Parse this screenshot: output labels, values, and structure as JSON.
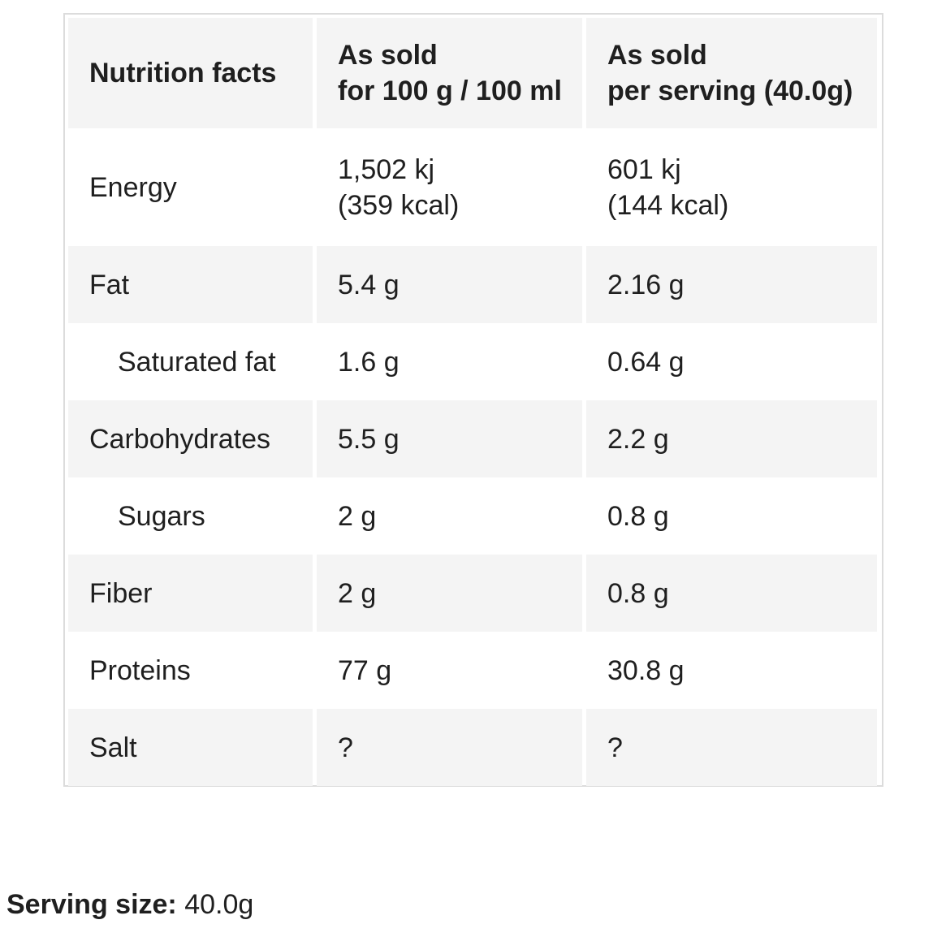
{
  "table": {
    "header": {
      "col1": "Nutrition facts",
      "col2_line1": "As sold",
      "col2_line2": "for 100 g / 100 ml",
      "col3_line1": "As sold",
      "col3_line2": "per serving (40.0g)"
    },
    "rows": [
      {
        "name": "Energy",
        "per100_line1": "1,502 kj",
        "per100_line2": "(359 kcal)",
        "perserving_line1": "601 kj",
        "perserving_line2": "(144 kcal)"
      },
      {
        "name": "Fat",
        "per100": "5.4 g",
        "perserving": "2.16 g"
      },
      {
        "name": "Saturated fat",
        "per100": "1.6 g",
        "perserving": "0.64 g"
      },
      {
        "name": "Carbohydrates",
        "per100": "5.5 g",
        "perserving": "2.2 g"
      },
      {
        "name": "Sugars",
        "per100": "2 g",
        "perserving": "0.8 g"
      },
      {
        "name": "Fiber",
        "per100": "2 g",
        "perserving": "0.8 g"
      },
      {
        "name": "Proteins",
        "per100": "77 g",
        "perserving": "30.8 g"
      },
      {
        "name": "Salt",
        "per100": "?",
        "perserving": "?"
      }
    ]
  },
  "serving": {
    "label": "Serving size:",
    "value": "40.0g"
  }
}
